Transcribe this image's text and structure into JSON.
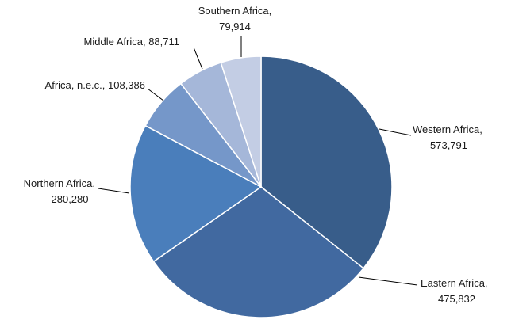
{
  "chart_data": {
    "type": "pie",
    "title": "",
    "slices": [
      {
        "label": "Western Africa",
        "value": 573791,
        "value_label": "573,791",
        "color": "#385d8a"
      },
      {
        "label": "Eastern Africa",
        "value": 475832,
        "value_label": "475,832",
        "color": "#4169a0"
      },
      {
        "label": "Northern Africa",
        "value": 280280,
        "value_label": "280,280",
        "color": "#4a7ebb"
      },
      {
        "label": "Africa, n.e.c.",
        "value": 108386,
        "value_label": "108,386",
        "color": "#7597c9"
      },
      {
        "label": "Middle Africa",
        "value": 88711,
        "value_label": "88,711",
        "color": "#a5b7d9"
      },
      {
        "label": "Southern Africa",
        "value": 79914,
        "value_label": "79,914",
        "color": "#c3cde4"
      }
    ],
    "start_direction": "12 o'clock",
    "direction": "clockwise",
    "legend": "none",
    "data_labels": "outside with leader lines"
  }
}
